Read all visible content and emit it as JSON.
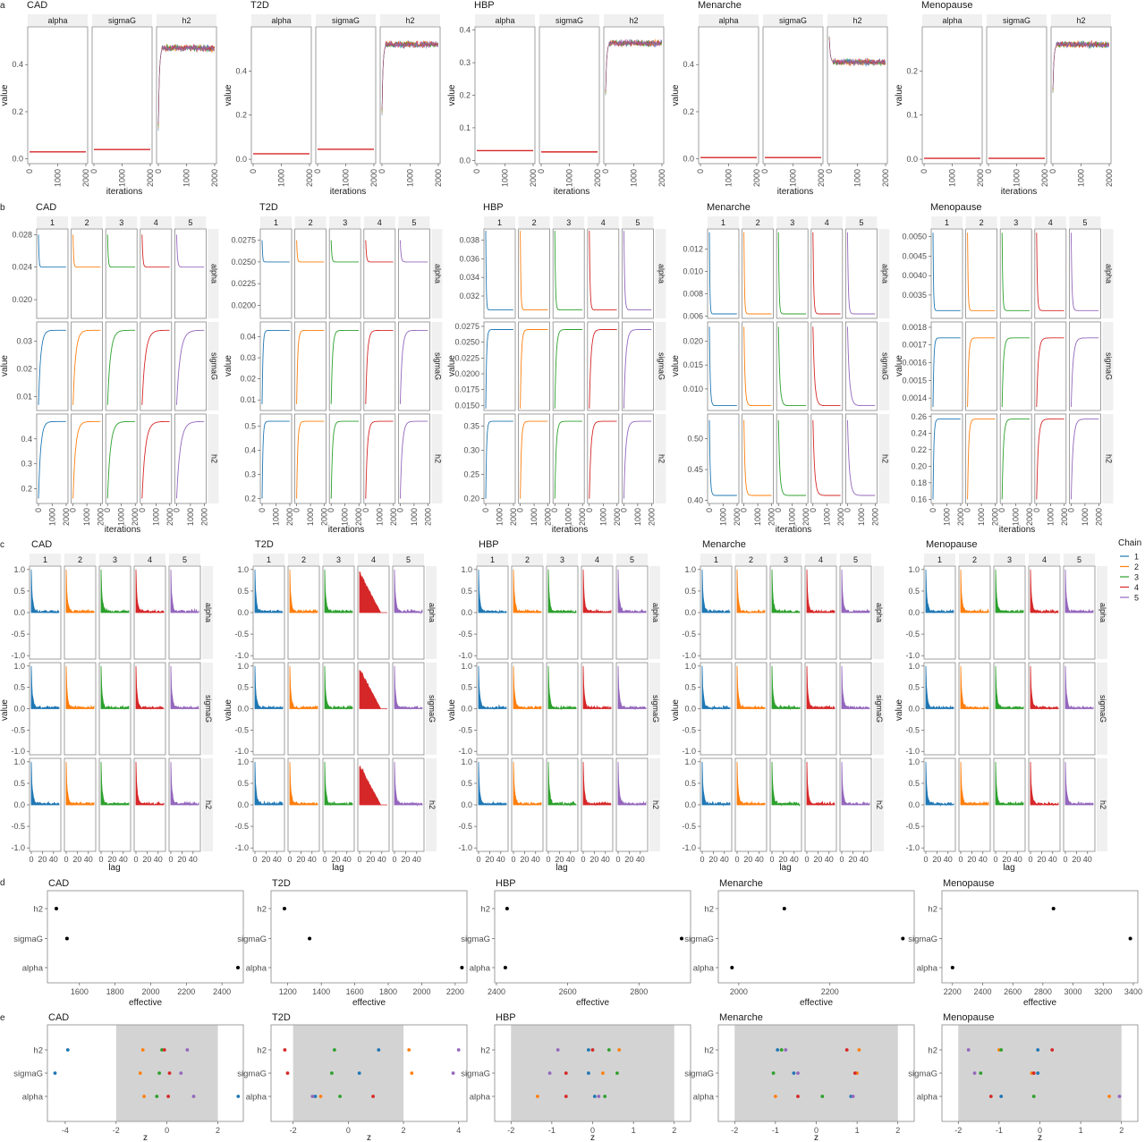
{
  "figure": {
    "traits": [
      "CAD",
      "T2D",
      "HBP",
      "Menarche",
      "Menopause"
    ],
    "params": [
      "alpha",
      "sigmaG",
      "h2"
    ],
    "chains": [
      "1",
      "2",
      "3",
      "4",
      "5"
    ],
    "chain_colors": [
      "#1f77b4",
      "#ff7f0e",
      "#2ca02c",
      "#d62728",
      "#9467bd"
    ],
    "legend_title": "Chain"
  },
  "panels": [
    {
      "letter": "a",
      "xlabel": "iterations",
      "ylabel": "value"
    },
    {
      "letter": "b",
      "xlabel": "iterations",
      "ylabel": "value"
    },
    {
      "letter": "c",
      "xlabel": "lag",
      "ylabel": "value"
    },
    {
      "letter": "d",
      "xlabel": "effective",
      "ylabel": ""
    },
    {
      "letter": "e",
      "xlabel": "z",
      "ylabel": ""
    }
  ],
  "chart_data": [
    {
      "panel": "a",
      "type": "line",
      "xlabel": "iterations",
      "ylabel": "value",
      "x_ticks": [
        0,
        1000,
        2000
      ],
      "facets": [
        {
          "trait": "CAD",
          "y_ticks": [
            0.0,
            0.2,
            0.4
          ],
          "ylim": [
            -0.02,
            0.56
          ],
          "values": {
            "alpha": 0.03,
            "sigmaG": 0.04,
            "h2": 0.47
          },
          "h2_start": 0.12
        },
        {
          "trait": "T2D",
          "y_ticks": [
            0.0,
            0.2,
            0.4
          ],
          "ylim": [
            -0.02,
            0.6
          ],
          "values": {
            "alpha": 0.025,
            "sigmaG": 0.045,
            "h2": 0.52
          },
          "h2_start": 0.2
        },
        {
          "trait": "HBP",
          "y_ticks": [
            0.0,
            0.1,
            0.2,
            0.3,
            0.4
          ],
          "ylim": [
            -0.01,
            0.41
          ],
          "values": {
            "alpha": 0.03,
            "sigmaG": 0.026,
            "h2": 0.36
          },
          "h2_start": 0.2
        },
        {
          "trait": "Menarche",
          "y_ticks": [
            0.0,
            0.2,
            0.4
          ],
          "ylim": [
            -0.02,
            0.56
          ],
          "values": {
            "alpha": 0.006,
            "sigmaG": 0.006,
            "h2": 0.41
          },
          "h2_start": 0.52
        },
        {
          "trait": "Menopause",
          "y_ticks": [
            0.0,
            0.1,
            0.2
          ],
          "ylim": [
            -0.01,
            0.3
          ],
          "values": {
            "alpha": 0.002,
            "sigmaG": 0.002,
            "h2": 0.26
          },
          "h2_start": 0.15
        }
      ]
    },
    {
      "panel": "b",
      "type": "line",
      "xlabel": "iterations",
      "ylabel": "value",
      "x_ticks": [
        0,
        1000,
        2000
      ],
      "facets": [
        {
          "trait": "CAD",
          "alpha": {
            "y_ticks": [
              0.02,
              0.024,
              0.028
            ],
            "y_labels": [
              "0.020",
              "0.024",
              "0.028"
            ],
            "ylim": [
              0.0177,
              0.0287
            ],
            "start": 0.028,
            "final": 0.024
          },
          "sigmaG": {
            "y_ticks": [
              0.01,
              0.02,
              0.03
            ],
            "y_labels": [
              "0.01",
              "0.02",
              "0.03"
            ],
            "ylim": [
              0.005,
              0.037
            ],
            "start": 0.007,
            "final": 0.034
          },
          "h2": {
            "y_ticks": [
              0.2,
              0.3,
              0.4
            ],
            "y_labels": [
              "0.2",
              "0.3",
              "0.4"
            ],
            "ylim": [
              0.14,
              0.5
            ],
            "start": 0.16,
            "final": 0.47
          }
        },
        {
          "trait": "T2D",
          "alpha": {
            "y_ticks": [
              0.02,
              0.0225,
              0.025,
              0.0275
            ],
            "y_labels": [
              "0.0200",
              "0.0225",
              "0.0250",
              "0.0275"
            ],
            "ylim": [
              0.0185,
              0.0288
            ],
            "start": 0.0275,
            "final": 0.025
          },
          "sigmaG": {
            "y_ticks": [
              0.01,
              0.02,
              0.03,
              0.04
            ],
            "y_labels": [
              "0.01",
              "0.02",
              "0.03",
              "0.04"
            ],
            "ylim": [
              0.005,
              0.047
            ],
            "start": 0.008,
            "final": 0.043
          },
          "h2": {
            "y_ticks": [
              0.2,
              0.3,
              0.4,
              0.5
            ],
            "y_labels": [
              "0.2",
              "0.3",
              "0.4",
              "0.5"
            ],
            "ylim": [
              0.18,
              0.55
            ],
            "start": 0.2,
            "final": 0.52
          }
        },
        {
          "trait": "HBP",
          "alpha": {
            "y_ticks": [
              0.032,
              0.034,
              0.036,
              0.038
            ],
            "y_labels": [
              "0.032",
              "0.034",
              "0.036",
              "0.038"
            ],
            "ylim": [
              0.0296,
              0.0392
            ],
            "start": 0.039,
            "final": 0.0305
          },
          "sigmaG": {
            "y_ticks": [
              0.015,
              0.0175,
              0.02,
              0.0225,
              0.025,
              0.0275
            ],
            "y_labels": [
              "0.0150",
              "0.0175",
              "0.0200",
              "0.0225",
              "0.0250",
              "0.0275"
            ],
            "ylim": [
              0.0142,
              0.0282
            ],
            "start": 0.0145,
            "final": 0.027
          },
          "h2": {
            "y_ticks": [
              0.2,
              0.25,
              0.3,
              0.35
            ],
            "y_labels": [
              "0.20",
              "0.25",
              "0.30",
              "0.35"
            ],
            "ylim": [
              0.19,
              0.375
            ],
            "start": 0.2,
            "final": 0.36
          }
        },
        {
          "trait": "Menarche",
          "alpha": {
            "y_ticks": [
              0.006,
              0.008,
              0.01,
              0.012
            ],
            "y_labels": [
              "0.006",
              "0.008",
              "0.010",
              "0.012"
            ],
            "ylim": [
              0.0058,
              0.0138
            ],
            "start": 0.0135,
            "final": 0.0062
          },
          "sigmaG": {
            "y_ticks": [
              0.01,
              0.015,
              0.02
            ],
            "y_labels": [
              "0.010",
              "0.015",
              "0.020"
            ],
            "ylim": [
              0.0055,
              0.024
            ],
            "start": 0.023,
            "final": 0.0065
          },
          "h2": {
            "y_ticks": [
              0.4,
              0.45,
              0.5
            ],
            "y_labels": [
              "0.40",
              "0.45",
              "0.50"
            ],
            "ylim": [
              0.395,
              0.54
            ],
            "start": 0.53,
            "final": 0.408
          }
        },
        {
          "trait": "Menopause",
          "alpha": {
            "y_ticks": [
              0.0035,
              0.004,
              0.0045,
              0.005
            ],
            "y_labels": [
              "0.0035",
              "0.0040",
              "0.0045",
              "0.0050"
            ],
            "ylim": [
              0.0029,
              0.0052
            ],
            "start": 0.0051,
            "final": 0.0031
          },
          "sigmaG": {
            "y_ticks": [
              0.0014,
              0.0015,
              0.0016,
              0.0017,
              0.0018
            ],
            "y_labels": [
              "0.0014",
              "0.0015",
              "0.0016",
              "0.0017",
              "0.0018"
            ],
            "ylim": [
              0.00133,
              0.00183
            ],
            "start": 0.00135,
            "final": 0.00174
          },
          "h2": {
            "y_ticks": [
              0.16,
              0.18,
              0.2,
              0.22,
              0.24,
              0.26
            ],
            "y_labels": [
              "0.16",
              "0.18",
              "0.20",
              "0.22",
              "0.24",
              "0.26"
            ],
            "ylim": [
              0.155,
              0.263
            ],
            "start": 0.16,
            "final": 0.257
          }
        }
      ]
    },
    {
      "panel": "c",
      "type": "area",
      "xlabel": "lag",
      "ylabel": "value",
      "x_ticks": [
        0,
        20,
        40
      ],
      "y_ticks": [
        -1.0,
        -0.5,
        0.0,
        0.5,
        1.0
      ],
      "ylim": [
        -1.08,
        1.08
      ],
      "slow_chain": {
        "trait": "T2D",
        "chain": "4"
      }
    },
    {
      "panel": "d",
      "type": "scatter",
      "xlabel": "effective",
      "facets": [
        {
          "trait": "CAD",
          "categories": [
            "h2",
            "sigmaG",
            "alpha"
          ],
          "values": [
            1470,
            1530,
            2490
          ],
          "x_ticks": [
            1600,
            1800,
            2000,
            2200,
            2400
          ],
          "xlim": [
            1420,
            2520
          ]
        },
        {
          "trait": "T2D",
          "categories": [
            "h2",
            "sigmaG",
            "alpha"
          ],
          "values": [
            1180,
            1330,
            2240
          ],
          "x_ticks": [
            1200,
            1400,
            1600,
            1800,
            2000,
            2200
          ],
          "xlim": [
            1100,
            2270
          ]
        },
        {
          "trait": "HBP",
          "categories": [
            "h2",
            "sigmaG",
            "alpha"
          ],
          "values": [
            2430,
            2920,
            2425
          ],
          "x_ticks": [
            2400,
            2600,
            2800
          ],
          "xlim": [
            2395,
            2945
          ]
        },
        {
          "trait": "Menarche",
          "categories": [
            "h2",
            "sigmaG",
            "alpha"
          ],
          "values": [
            2100,
            2360,
            1985
          ],
          "x_ticks": [
            2000,
            2200
          ],
          "xlim": [
            1955,
            2385
          ]
        },
        {
          "trait": "Menopause",
          "categories": [
            "h2",
            "sigmaG",
            "alpha"
          ],
          "values": [
            2870,
            3380,
            2200
          ],
          "x_ticks": [
            2200,
            2400,
            2600,
            2800,
            3000,
            3200,
            3400
          ],
          "xlim": [
            2130,
            3430
          ]
        }
      ]
    },
    {
      "panel": "e",
      "type": "scatter",
      "xlabel": "z",
      "shaded_band": [
        -2,
        2
      ],
      "facets": [
        {
          "trait": "CAD",
          "x_ticks": [
            -4,
            -2,
            0,
            2
          ],
          "xlim": [
            -4.7,
            3.0
          ],
          "points": {
            "h2": [
              -3.9,
              -0.95,
              -0.2,
              -0.1,
              0.8
            ],
            "sigmaG": [
              -4.4,
              -1.05,
              -0.3,
              0.1,
              0.55
            ],
            "alpha": [
              2.8,
              -0.9,
              -0.4,
              0.05,
              1.05
            ]
          }
        },
        {
          "trait": "T2D",
          "x_ticks": [
            -2,
            0,
            2,
            4
          ],
          "xlim": [
            -2.8,
            4.3
          ],
          "points": {
            "h2": [
              1.1,
              2.2,
              -0.5,
              -2.3,
              4.0
            ],
            "sigmaG": [
              0.4,
              2.3,
              -0.6,
              -2.2,
              3.8
            ],
            "alpha": [
              -1.2,
              -1.0,
              -0.3,
              0.9,
              -1.3
            ]
          }
        },
        {
          "trait": "HBP",
          "x_ticks": [
            -2,
            -1,
            0,
            1,
            2
          ],
          "xlim": [
            -2.4,
            2.4
          ],
          "points": {
            "h2": [
              -0.1,
              0.65,
              0.4,
              0.0,
              -0.85
            ],
            "sigmaG": [
              -0.1,
              0.25,
              0.6,
              -0.65,
              -1.05
            ],
            "alpha": [
              0.05,
              -1.35,
              0.3,
              -0.65,
              0.15
            ]
          }
        },
        {
          "trait": "Menarche",
          "x_ticks": [
            -2,
            -1,
            0,
            1,
            2
          ],
          "xlim": [
            -2.4,
            2.4
          ],
          "points": {
            "h2": [
              -0.95,
              1.05,
              -0.85,
              0.75,
              -0.75
            ],
            "sigmaG": [
              -0.55,
              1.0,
              -1.05,
              0.95,
              -0.45
            ],
            "alpha": [
              0.85,
              -1.0,
              0.15,
              -0.45,
              0.9
            ]
          }
        },
        {
          "trait": "Menopause",
          "x_ticks": [
            -2,
            -1,
            0,
            1,
            2
          ],
          "xlim": [
            -2.4,
            2.4
          ],
          "points": {
            "h2": [
              -0.05,
              -1.0,
              -0.95,
              0.3,
              -1.75
            ],
            "sigmaG": [
              -0.05,
              -0.2,
              -1.45,
              -0.15,
              -1.6
            ],
            "alpha": [
              -0.95,
              1.7,
              -0.15,
              -1.2,
              1.95
            ]
          }
        }
      ]
    }
  ]
}
